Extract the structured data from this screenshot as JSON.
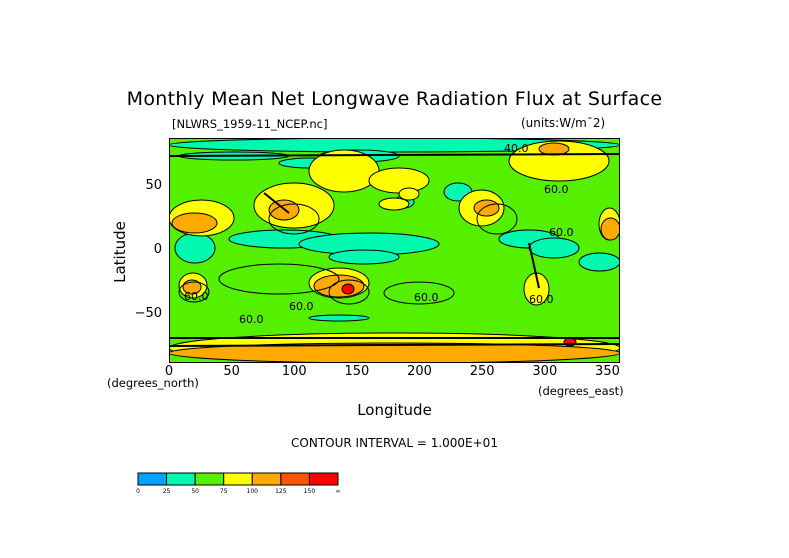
{
  "chart_data": {
    "type": "heatmap",
    "subtype": "filled-contour-map",
    "title": "Monthly Mean Net Longwave Radiation Flux at Surface",
    "source_label": "[NLWRS_1959-11_NCEP.nc]",
    "units_label": "(units:W/m¯2)",
    "xlabel": "Longitude",
    "ylabel": "Latitude",
    "x_unit_note": "(degrees_east)",
    "y_unit_note": "(degrees_north)",
    "xlim": [
      0,
      360
    ],
    "ylim": [
      -90,
      90
    ],
    "x_ticks": [
      "0",
      "50",
      "100",
      "150",
      "200",
      "250",
      "300",
      "350"
    ],
    "y_ticks": [
      "50",
      "0",
      "−50"
    ],
    "contour_interval_text": "CONTOUR INTERVAL = 1.000E+01",
    "contour_labels": [
      "40.0",
      "60.0",
      "60.0",
      "60.0",
      "60.0",
      "60.0",
      "60.0",
      "60.0"
    ],
    "colorbar": {
      "levels": [
        "0",
        "25",
        "50",
        "75",
        "100",
        "125",
        "150",
        "∞"
      ],
      "colors": [
        "#00a2ff",
        "#00f8b0",
        "#55f000",
        "#ffff00",
        "#ffaa00",
        "#ff5500",
        "#ff0000"
      ]
    },
    "background_value_color": "#55f000",
    "grid": false
  }
}
